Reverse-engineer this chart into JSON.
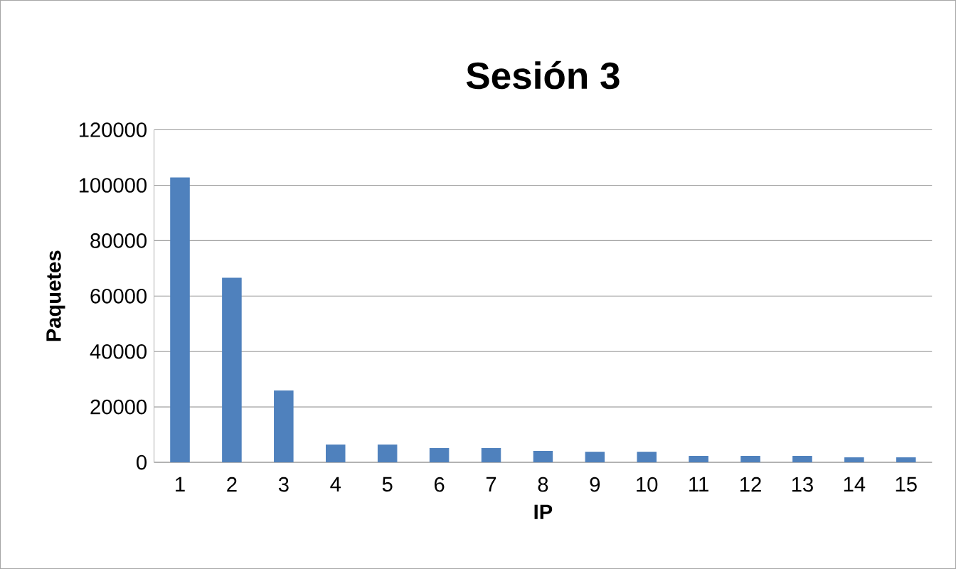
{
  "chart_data": {
    "type": "bar",
    "title": "Sesión 3",
    "xlabel": "IP",
    "ylabel": "Paquetes",
    "categories": [
      "1",
      "2",
      "3",
      "4",
      "5",
      "6",
      "7",
      "8",
      "9",
      "10",
      "11",
      "12",
      "13",
      "14",
      "15"
    ],
    "values": [
      102700,
      66500,
      25800,
      6300,
      6300,
      5000,
      5000,
      4000,
      3700,
      3700,
      2200,
      2200,
      2200,
      1700,
      1700
    ],
    "color": "#4f81bd",
    "ylim": [
      0,
      120000
    ],
    "yticks": [
      0,
      20000,
      40000,
      60000,
      80000,
      100000,
      120000
    ],
    "grid": "y"
  }
}
